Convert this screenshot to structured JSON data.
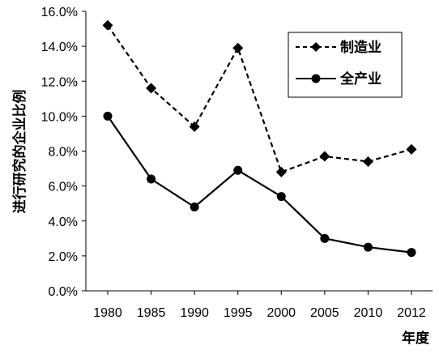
{
  "chart_data": {
    "type": "line",
    "title": "",
    "xlabel": "年度",
    "ylabel": "进行研究的企业比例",
    "categories": [
      "1980",
      "1985",
      "1990",
      "1995",
      "2000",
      "2005",
      "2010",
      "2012"
    ],
    "ylim": [
      0,
      16
    ],
    "yticks": [
      "0.0%",
      "2.0%",
      "4.0%",
      "6.0%",
      "8.0%",
      "10.0%",
      "12.0%",
      "14.0%",
      "16.0%"
    ],
    "grid": false,
    "legend_position": "top-right",
    "series": [
      {
        "name": "制造业",
        "style": "dashed",
        "marker": "diamond",
        "color": "#000000",
        "values": [
          15.2,
          11.6,
          9.4,
          13.9,
          6.8,
          7.7,
          7.4,
          8.1
        ]
      },
      {
        "name": "全产业",
        "style": "solid",
        "marker": "circle",
        "color": "#000000",
        "values": [
          10.0,
          6.4,
          4.8,
          6.9,
          5.4,
          3.0,
          2.5,
          2.2
        ]
      }
    ]
  }
}
